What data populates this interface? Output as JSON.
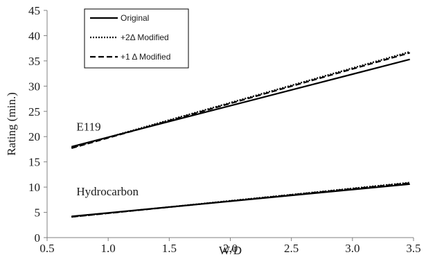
{
  "chart_data": {
    "type": "line",
    "title": "",
    "xlabel": "W/D",
    "ylabel": "Rating (min.)",
    "xlim": [
      0.5,
      3.5
    ],
    "ylim": [
      0,
      45
    ],
    "xticks": [
      "0.5",
      "1.0",
      "1.5",
      "2.0",
      "2.5",
      "3.0",
      "3.5"
    ],
    "yticks": [
      "0",
      "5",
      "10",
      "15",
      "20",
      "25",
      "30",
      "35",
      "40",
      "45"
    ],
    "grid": false,
    "legend_position": "top-left",
    "legend": [
      {
        "label": "Original",
        "style": "solid"
      },
      {
        "label": "+2Δ Modified",
        "style": "dotted"
      },
      {
        "label": "+1 Δ Modified",
        "style": "dashed"
      }
    ],
    "annotations": [
      {
        "text": "E119",
        "x": 0.74,
        "y": 21.2
      },
      {
        "text": "Hydrocarbon",
        "x": 0.74,
        "y": 8.4
      }
    ],
    "series": [
      {
        "group": "E119",
        "style": "solid",
        "x": [
          0.7,
          3.47
        ],
        "values": [
          18.0,
          35.3
        ]
      },
      {
        "group": "E119",
        "style": "dotted",
        "x": [
          0.7,
          3.47
        ],
        "values": [
          17.8,
          36.8
        ]
      },
      {
        "group": "E119",
        "style": "dashed",
        "x": [
          0.7,
          3.47
        ],
        "values": [
          17.7,
          36.6
        ]
      },
      {
        "group": "Hydrocarbon",
        "style": "solid",
        "x": [
          0.7,
          3.47
        ],
        "values": [
          4.2,
          10.6
        ]
      },
      {
        "group": "Hydrocarbon",
        "style": "dotted",
        "x": [
          0.7,
          3.47
        ],
        "values": [
          4.1,
          10.9
        ]
      },
      {
        "group": "Hydrocarbon",
        "style": "dashed",
        "x": [
          0.7,
          3.47
        ],
        "values": [
          4.1,
          10.8
        ]
      }
    ]
  }
}
